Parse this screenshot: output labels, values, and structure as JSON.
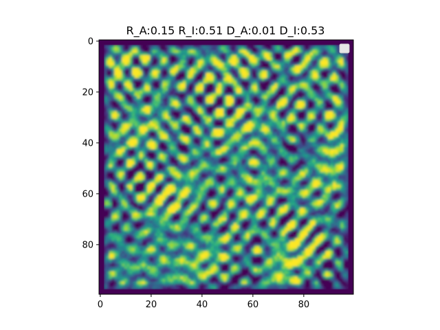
{
  "chart_data": {
    "type": "heatmap",
    "title": "R_A:0.15 R_I:0.51 D_A:0.01 D_I:0.53",
    "xlabel": "",
    "ylabel": "",
    "grid_size": [
      100,
      100
    ],
    "xlim": [
      -0.5,
      99.5
    ],
    "ylim": [
      99.5,
      -0.5
    ],
    "x_ticks": [
      0,
      20,
      40,
      60,
      80
    ],
    "y_ticks": [
      0,
      20,
      40,
      60,
      80
    ],
    "x_tick_labels": [
      "0",
      "20",
      "40",
      "60",
      "80"
    ],
    "y_tick_labels": [
      "0",
      "20",
      "40",
      "60",
      "80"
    ],
    "colormap": "viridis",
    "colors": {
      "low": "#440154",
      "mid": "#21918c",
      "high": "#fde725",
      "legend_box_fill": "#e6e6e6",
      "legend_box_edge": "#cccccc"
    },
    "border_value": "low",
    "pattern": "labyrinthine reaction-diffusion stripes and spots",
    "legend": {
      "placement": "top-right",
      "entries": []
    }
  }
}
